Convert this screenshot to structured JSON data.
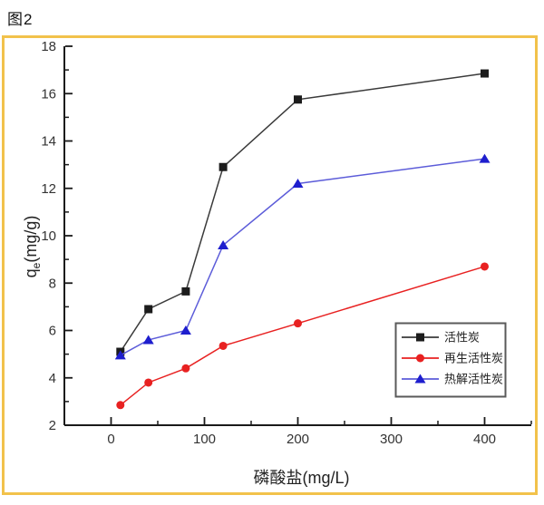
{
  "page": {
    "figure_label": "图2"
  },
  "frame": {
    "border_color": "#F2C24B"
  },
  "chart_data": {
    "type": "line",
    "title": "",
    "xlabel": "磷酸盐(mg/L)",
    "ylabel": "qe(mg/g)",
    "ylabel_parts": {
      "base": "q",
      "sub": "e",
      "rest": "(mg/g)"
    },
    "xlim": [
      -50,
      450
    ],
    "ylim": [
      2,
      18
    ],
    "x_major_ticks": [
      0,
      100,
      200,
      300,
      400
    ],
    "x_minor_ticks": [
      50,
      150,
      250,
      350,
      450
    ],
    "y_major_ticks": [
      2,
      4,
      6,
      8,
      10,
      12,
      14,
      16,
      18
    ],
    "y_minor_ticks": [
      3,
      5,
      7,
      9,
      11,
      13,
      15,
      17
    ],
    "grid": false,
    "legend_position": "lower-right",
    "x": [
      10,
      40,
      80,
      120,
      200,
      400
    ],
    "series": [
      {
        "key": "activated-carbon",
        "name": "活性炭",
        "marker": "square",
        "color": "#1C1C1C",
        "line_color": "#3A3A3A",
        "values": [
          5.1,
          6.9,
          7.65,
          12.9,
          15.75,
          16.85
        ]
      },
      {
        "key": "regenerated-activated-carbon",
        "name": "再生活性炭",
        "marker": "circle",
        "color": "#E82121",
        "line_color": "#E82121",
        "values": [
          2.85,
          3.8,
          4.4,
          5.35,
          6.3,
          8.7
        ]
      },
      {
        "key": "pyrolysis-activated-carbon",
        "name": "热解活性炭",
        "marker": "triangle",
        "color": "#1E1ECE",
        "line_color": "#5C5CD9",
        "values": [
          4.95,
          5.6,
          6.0,
          9.6,
          12.2,
          13.25
        ]
      }
    ]
  }
}
